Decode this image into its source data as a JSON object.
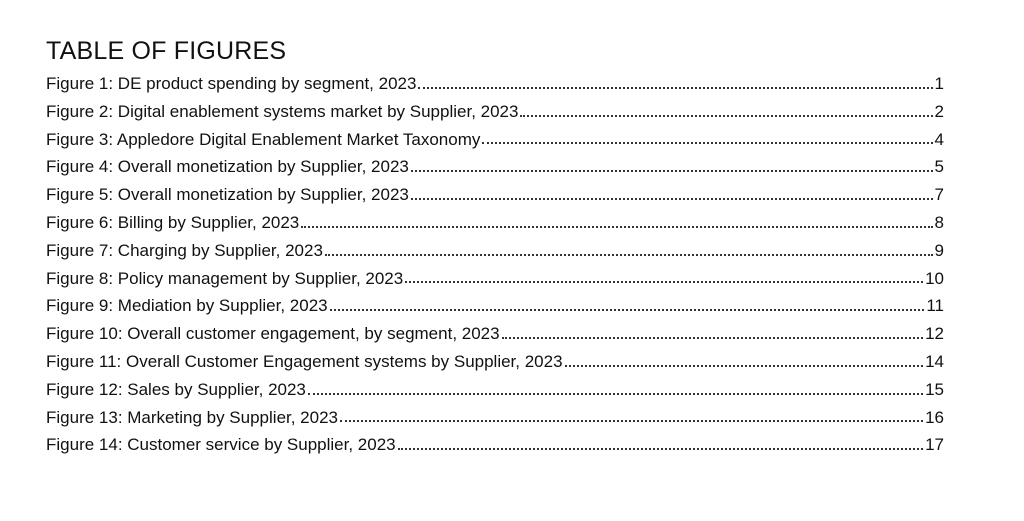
{
  "title": "TABLE OF FIGURES",
  "entries": [
    {
      "text": "Figure 1: DE product spending by segment, 2023",
      "page": "1"
    },
    {
      "text": "Figure 2: Digital enablement systems market by Supplier, 2023",
      "page": "2"
    },
    {
      "text": "Figure 3: Appledore Digital Enablement Market Taxonomy",
      "page": "4"
    },
    {
      "text": "Figure 4: Overall monetization by Supplier, 2023",
      "page": "5"
    },
    {
      "text": "Figure 5: Overall monetization by Supplier, 2023",
      "page": "7"
    },
    {
      "text": "Figure 6: Billing by Supplier, 2023",
      "page": "8"
    },
    {
      "text": "Figure 7: Charging by Supplier, 2023",
      "page": "9"
    },
    {
      "text": "Figure 8: Policy management by Supplier, 2023",
      "page": "10"
    },
    {
      "text": "Figure 9: Mediation by Supplier, 2023",
      "page": "11"
    },
    {
      "text": "Figure 10: Overall customer engagement, by segment, 2023",
      "page": "12"
    },
    {
      "text": "Figure 11: Overall Customer Engagement systems by Supplier, 2023",
      "page": "14"
    },
    {
      "text": "Figure 12: Sales by Supplier, 2023",
      "page": "15"
    },
    {
      "text": "Figure 13: Marketing by Supplier, 2023",
      "page": "16"
    },
    {
      "text": "Figure 14: Customer service by Supplier, 2023",
      "page": "17"
    }
  ]
}
